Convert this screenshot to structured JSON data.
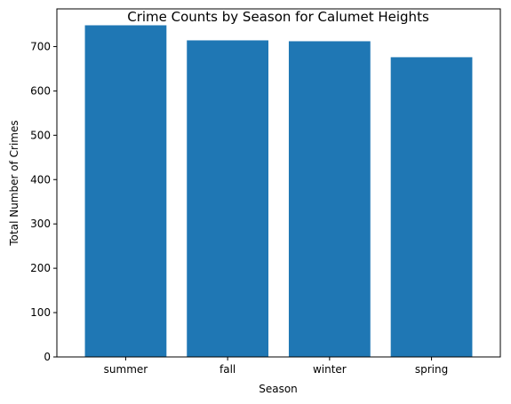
{
  "chart_data": {
    "type": "bar",
    "title": "Crime Counts by Season for Calumet Heights",
    "xlabel": "Season",
    "ylabel": "Total Number of Crimes",
    "categories": [
      "summer",
      "fall",
      "winter",
      "spring"
    ],
    "values": [
      748,
      714,
      712,
      676
    ],
    "ylim": [
      0,
      785
    ],
    "yticks": [
      0,
      100,
      200,
      300,
      400,
      500,
      600,
      700
    ],
    "bar_color": "#1f77b4",
    "grid": false,
    "legend": "none"
  }
}
